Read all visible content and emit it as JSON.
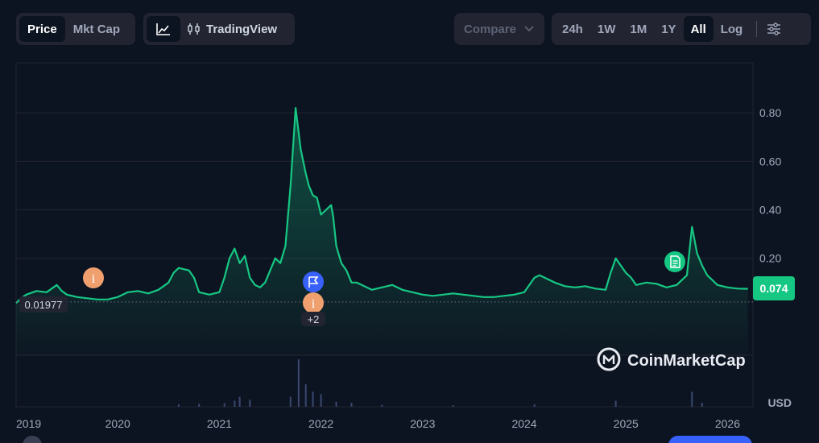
{
  "toolbar": {
    "type_tabs": [
      "Price",
      "Mkt Cap"
    ],
    "active_type": "Price",
    "tradingview_label": "TradingView",
    "compare_label": "Compare",
    "ranges": [
      "24h",
      "1W",
      "1M",
      "1Y",
      "All"
    ],
    "active_range": "All",
    "log_label": "Log"
  },
  "chart_data": {
    "type": "area",
    "y_ticks": [
      "0.80",
      "0.60",
      "0.40",
      "0.20"
    ],
    "ylim": [
      -0.2,
      1.0
    ],
    "x_ticks": [
      "2019",
      "2020",
      "2021",
      "2022",
      "2023",
      "2024",
      "2025",
      "2026"
    ],
    "xlim": [
      2019.0,
      2026.25
    ],
    "volume_unit": "USD",
    "current_price_label": "0.074",
    "reference_label": "0.01977",
    "reference_value": 0.01977,
    "event_more_label": "+2",
    "series": [
      {
        "x": [
          2019.0,
          2019.05,
          2019.1,
          2019.2,
          2019.3,
          2019.4,
          2019.45,
          2019.5,
          2019.55,
          2019.6,
          2019.7,
          2019.8,
          2019.9,
          2020.0,
          2020.1,
          2020.2,
          2020.3,
          2020.4,
          2020.5,
          2020.55,
          2020.6,
          2020.7,
          2020.75,
          2020.8,
          2020.9,
          2021.0,
          2021.05,
          2021.1,
          2021.15,
          2021.2,
          2021.25,
          2021.3,
          2021.35,
          2021.4,
          2021.45,
          2021.5,
          2021.55,
          2021.6,
          2021.65,
          2021.7,
          2021.75,
          2021.8,
          2021.85,
          2021.88,
          2021.92,
          2021.96,
          2022.0,
          2022.05,
          2022.1,
          2022.12,
          2022.15,
          2022.2,
          2022.25,
          2022.3,
          2022.35,
          2022.4,
          2022.45,
          2022.5,
          2022.6,
          2022.7,
          2022.8,
          2022.9,
          2023.0,
          2023.1,
          2023.2,
          2023.3,
          2023.4,
          2023.5,
          2023.6,
          2023.7,
          2023.8,
          2023.9,
          2024.0,
          2024.1,
          2024.15,
          2024.2,
          2024.3,
          2024.4,
          2024.5,
          2024.6,
          2024.7,
          2024.8,
          2024.85,
          2024.9,
          2025.0,
          2025.05,
          2025.1,
          2025.2,
          2025.3,
          2025.4,
          2025.5,
          2025.55,
          2025.6,
          2025.65,
          2025.7,
          2025.75,
          2025.8,
          2025.85,
          2025.9,
          2026.0,
          2026.1,
          2026.2
        ],
        "y": [
          0.015,
          0.035,
          0.05,
          0.065,
          0.06,
          0.09,
          0.065,
          0.05,
          0.045,
          0.04,
          0.035,
          0.03,
          0.03,
          0.04,
          0.06,
          0.065,
          0.055,
          0.07,
          0.1,
          0.14,
          0.16,
          0.15,
          0.12,
          0.06,
          0.05,
          0.06,
          0.12,
          0.2,
          0.24,
          0.18,
          0.21,
          0.12,
          0.09,
          0.08,
          0.1,
          0.15,
          0.2,
          0.18,
          0.25,
          0.5,
          0.82,
          0.65,
          0.55,
          0.5,
          0.46,
          0.45,
          0.38,
          0.4,
          0.42,
          0.37,
          0.25,
          0.18,
          0.15,
          0.1,
          0.1,
          0.09,
          0.08,
          0.07,
          0.08,
          0.09,
          0.07,
          0.06,
          0.05,
          0.045,
          0.05,
          0.055,
          0.05,
          0.045,
          0.04,
          0.04,
          0.045,
          0.05,
          0.06,
          0.12,
          0.13,
          0.12,
          0.1,
          0.085,
          0.08,
          0.085,
          0.075,
          0.07,
          0.14,
          0.2,
          0.14,
          0.12,
          0.09,
          0.1,
          0.095,
          0.08,
          0.09,
          0.11,
          0.13,
          0.33,
          0.22,
          0.17,
          0.13,
          0.11,
          0.09,
          0.08,
          0.075,
          0.074
        ]
      }
    ],
    "volume_x": [
      2020.6,
      2020.8,
      2021.05,
      2021.15,
      2021.2,
      2021.3,
      2021.7,
      2021.78,
      2021.85,
      2021.92,
      2022.0,
      2022.15,
      2022.3,
      2022.6,
      2023.3,
      2024.1,
      2024.9,
      2025.65,
      2025.75
    ],
    "volume_y": [
      0.05,
      0.06,
      0.07,
      0.12,
      0.2,
      0.14,
      0.2,
      0.95,
      0.45,
      0.3,
      0.25,
      0.1,
      0.08,
      0.04,
      0.03,
      0.05,
      0.12,
      0.3,
      0.08
    ],
    "volume_ylim": [
      0,
      1
    ]
  },
  "brand": {
    "name": "CoinMarketCap"
  },
  "colors": {
    "line": "#16c784",
    "background": "#0d1421",
    "grid": "#222531",
    "event_orange": "#f0a06e",
    "event_blue": "#3861fb",
    "volume": "#3a4870"
  }
}
